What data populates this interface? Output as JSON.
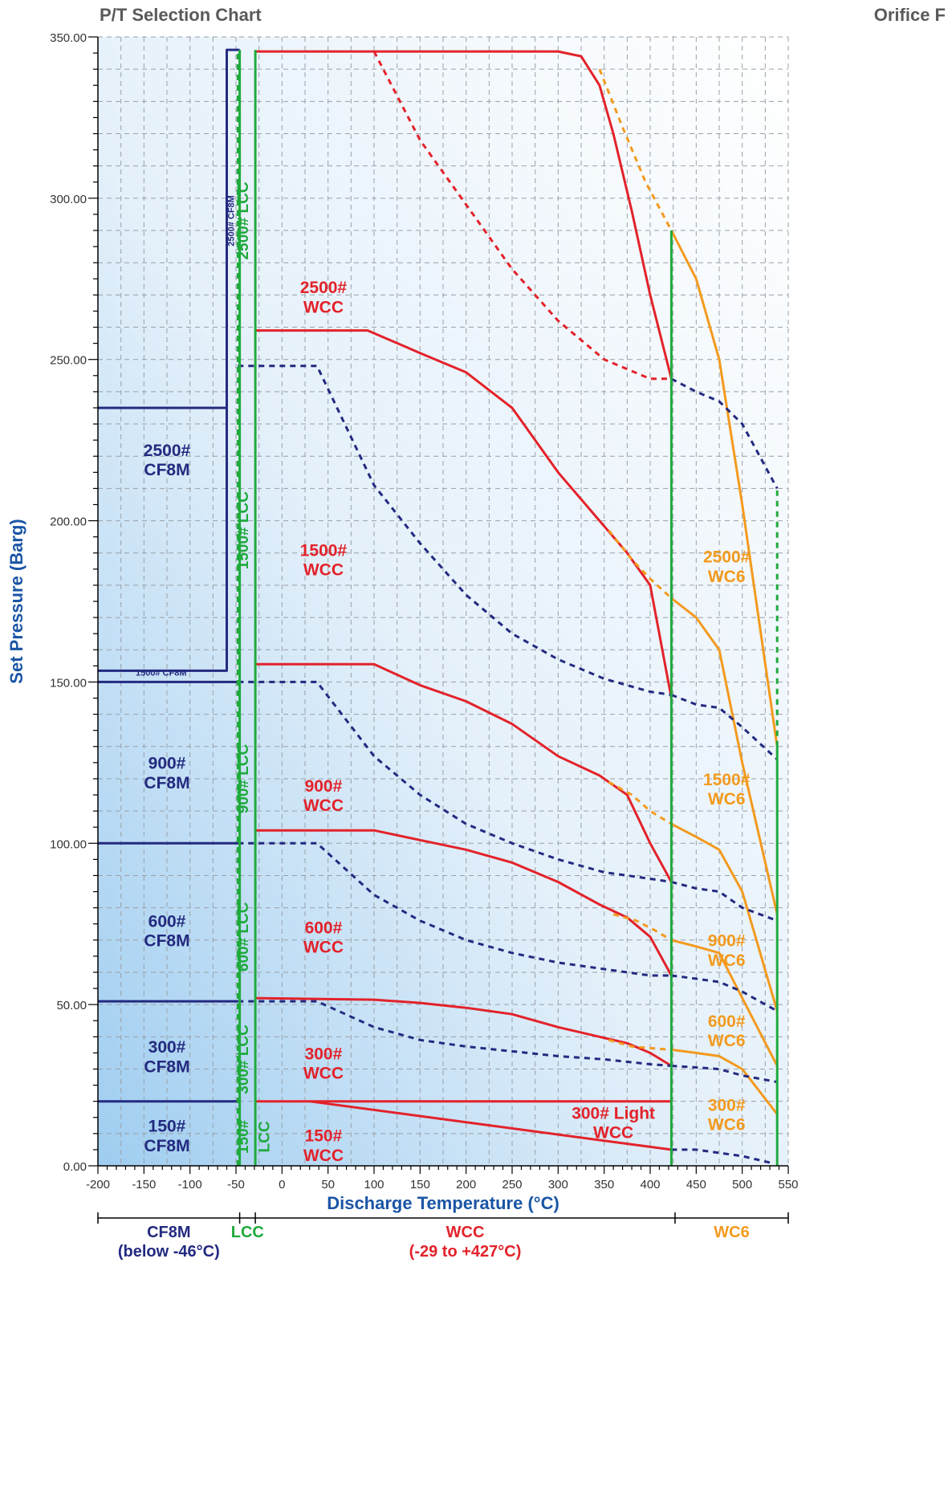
{
  "header": {
    "left": "P/T Selection Chart",
    "right": "Orifice F"
  },
  "chart_data": {
    "type": "line",
    "title": "P/T Selection Chart",
    "subtitle": "Orifice F",
    "xlabel": "Discharge Temperature (°C)",
    "ylabel": "Set Pressure (Barg)",
    "xlim": [
      -200,
      550
    ],
    "ylim": [
      0,
      350
    ],
    "grid": true,
    "x_ticks": [
      -200,
      -150,
      -100,
      -50,
      0,
      50,
      100,
      150,
      200,
      250,
      300,
      350,
      400,
      450,
      500,
      550
    ],
    "y_ticks": [
      0,
      50,
      100,
      150,
      200,
      250,
      300,
      350
    ],
    "y_tick_labels": [
      "0.00",
      "50.00",
      "100.00",
      "150.00",
      "200.00",
      "250.00",
      "300.00",
      "350.00"
    ],
    "colors": {
      "cf8m": "#232a80",
      "lcc": "#1faa3c",
      "wcc": "#e3222a",
      "wc6": "#f39a1e",
      "axis_label": "#1a55a5"
    },
    "series": [
      {
        "name": "2500# WCC",
        "material": "wcc",
        "style": "solid",
        "x": [
          -29,
          100,
          300,
          325,
          345,
          360,
          380,
          400,
          423
        ],
        "y": [
          345.5,
          345.5,
          345.5,
          344,
          335,
          320,
          296,
          270,
          244
        ]
      },
      {
        "name": "",
        "material": "wcc",
        "style": "dashed",
        "x": [
          100,
          150,
          200,
          250,
          300,
          350,
          400,
          423
        ],
        "y": [
          345.5,
          318,
          298,
          278,
          262,
          250,
          244,
          244
        ]
      },
      {
        "name": "",
        "material": "wc6",
        "style": "dashed",
        "x": [
          345,
          370,
          395,
          423
        ],
        "y": [
          340,
          322,
          305,
          290
        ]
      },
      {
        "name": "2500# WC6",
        "material": "wc6",
        "style": "solid",
        "x": [
          423,
          450,
          475,
          500,
          538
        ],
        "y": [
          290,
          275,
          250,
          205,
          130
        ]
      },
      {
        "name": "",
        "material": "cf8m",
        "style": "dashed",
        "x": [
          423,
          450,
          475,
          500,
          538
        ],
        "y": [
          244,
          240,
          237,
          230,
          210
        ]
      },
      {
        "name": "1500# WCC",
        "material": "wcc",
        "style": "solid",
        "x": [
          -29,
          93,
          150,
          200,
          250,
          300,
          345,
          375,
          400,
          423
        ],
        "y": [
          259,
          259,
          252,
          246,
          235,
          215,
          200,
          190,
          180,
          145
        ]
      },
      {
        "name": "",
        "material": "cf8m",
        "style": "dashed",
        "x": [
          -48,
          38,
          100,
          150,
          200,
          250,
          300,
          350,
          400,
          423
        ],
        "y": [
          248,
          248,
          211,
          193,
          177,
          165,
          157,
          151,
          147,
          146
        ]
      },
      {
        "name": "",
        "material": "wc6",
        "style": "dashed",
        "x": [
          355,
          380,
          400,
          423
        ],
        "y": [
          197,
          188,
          182,
          176
        ]
      },
      {
        "name": "1500# WC6",
        "material": "wc6",
        "style": "solid",
        "x": [
          423,
          450,
          475,
          500,
          538
        ],
        "y": [
          176,
          170,
          160,
          125,
          78
        ]
      },
      {
        "name": "",
        "material": "cf8m",
        "style": "dashed",
        "x": [
          423,
          450,
          475,
          500,
          538
        ],
        "y": [
          146,
          143,
          142,
          136,
          126
        ]
      },
      {
        "name": "900# WCC",
        "material": "wcc",
        "style": "solid",
        "x": [
          -29,
          100,
          150,
          200,
          250,
          300,
          345,
          375,
          400,
          423
        ],
        "y": [
          155.5,
          155.5,
          149,
          144,
          137,
          127,
          121,
          115,
          100,
          88
        ]
      },
      {
        "name": "",
        "material": "cf8m",
        "style": "dashed",
        "x": [
          -48,
          38,
          100,
          150,
          200,
          250,
          300,
          350,
          400,
          423
        ],
        "y": [
          150,
          150,
          127,
          115,
          106,
          100,
          95,
          91,
          89,
          88
        ]
      },
      {
        "name": "",
        "material": "wc6",
        "style": "dashed",
        "x": [
          355,
          380,
          400,
          423
        ],
        "y": [
          119,
          115,
          110,
          106
        ]
      },
      {
        "name": "900# WC6",
        "material": "wc6",
        "style": "solid",
        "x": [
          423,
          450,
          475,
          500,
          538
        ],
        "y": [
          106,
          102,
          98,
          85,
          48
        ]
      },
      {
        "name": "",
        "material": "cf8m",
        "style": "dashed",
        "x": [
          423,
          450,
          475,
          500,
          538
        ],
        "y": [
          88,
          86,
          85,
          80,
          76
        ]
      },
      {
        "name": "600# WCC",
        "material": "wcc",
        "style": "solid",
        "x": [
          -29,
          100,
          150,
          200,
          250,
          300,
          345,
          375,
          400,
          423
        ],
        "y": [
          104,
          104,
          101,
          98,
          94,
          88,
          81,
          77,
          71,
          59
        ]
      },
      {
        "name": "",
        "material": "cf8m",
        "style": "dashed",
        "x": [
          -48,
          38,
          100,
          150,
          200,
          250,
          300,
          350,
          400,
          423
        ],
        "y": [
          100,
          100,
          84,
          76,
          70,
          66,
          63,
          61,
          59,
          59
        ]
      },
      {
        "name": "",
        "material": "wc6",
        "style": "dashed",
        "x": [
          360,
          385,
          405,
          423
        ],
        "y": [
          78,
          76,
          73,
          70
        ]
      },
      {
        "name": "600# WC6",
        "material": "wc6",
        "style": "solid",
        "x": [
          423,
          450,
          475,
          500,
          538
        ],
        "y": [
          70,
          68,
          66,
          52,
          31
        ]
      },
      {
        "name": "",
        "material": "cf8m",
        "style": "dashed",
        "x": [
          423,
          450,
          475,
          500,
          538
        ],
        "y": [
          59,
          58,
          57,
          54,
          48
        ]
      },
      {
        "name": "300# WCC",
        "material": "wcc",
        "style": "solid",
        "x": [
          -29,
          100,
          150,
          200,
          250,
          300,
          345,
          375,
          400,
          423
        ],
        "y": [
          52,
          51.5,
          50.5,
          49,
          47,
          43,
          40,
          38,
          35,
          31
        ]
      },
      {
        "name": "",
        "material": "cf8m",
        "style": "dashed",
        "x": [
          -48,
          38,
          100,
          150,
          200,
          250,
          300,
          350,
          400,
          423
        ],
        "y": [
          51,
          51,
          43,
          39,
          37,
          35.5,
          34,
          33,
          31.5,
          31
        ]
      },
      {
        "name": "",
        "material": "wc6",
        "style": "dashed",
        "x": [
          355,
          380,
          400,
          423
        ],
        "y": [
          39,
          37,
          36.5,
          36
        ]
      },
      {
        "name": "300# WC6",
        "material": "wc6",
        "style": "solid",
        "x": [
          423,
          450,
          475,
          500,
          538
        ],
        "y": [
          36,
          35,
          34,
          30,
          16
        ]
      },
      {
        "name": "",
        "material": "cf8m",
        "style": "dashed",
        "x": [
          423,
          450,
          475,
          500,
          538
        ],
        "y": [
          31,
          30.5,
          30,
          28,
          26
        ]
      },
      {
        "name": "300# Light WCC",
        "material": "wcc",
        "style": "solid",
        "x": [
          -29,
          423
        ],
        "y": [
          20,
          20
        ]
      },
      {
        "name": "150# WCC",
        "material": "wcc",
        "style": "solid",
        "x": [
          30,
          423
        ],
        "y": [
          20,
          5
        ]
      },
      {
        "name": "",
        "material": "cf8m",
        "style": "dashed",
        "x": [
          423,
          450,
          475,
          500,
          530
        ],
        "y": [
          5,
          5,
          4,
          3,
          1
        ]
      },
      {
        "name": "2500# CF8M",
        "material": "cf8m",
        "style": "solid",
        "x": [
          -200,
          -60,
          -60,
          -46
        ],
        "y": [
          235,
          235,
          346,
          346
        ]
      },
      {
        "name": "1500# CF8M",
        "material": "cf8m",
        "style": "solid",
        "x": [
          -200,
          -60,
          -60
        ],
        "y": [
          153.5,
          153.5,
          235
        ]
      },
      {
        "name": "900# CF8M",
        "material": "cf8m",
        "style": "solid",
        "x": [
          -200,
          -48
        ],
        "y": [
          150,
          150
        ]
      },
      {
        "name": "600# CF8M",
        "material": "cf8m",
        "style": "solid",
        "x": [
          -200,
          -48
        ],
        "y": [
          100,
          100
        ]
      },
      {
        "name": "300# CF8M",
        "material": "cf8m",
        "style": "solid",
        "x": [
          -200,
          -48
        ],
        "y": [
          51,
          51
        ]
      },
      {
        "name": "150# CF8M",
        "material": "cf8m",
        "style": "solid",
        "x": [
          -200,
          -48
        ],
        "y": [
          20,
          20
        ]
      },
      {
        "name": "",
        "material": "lcc",
        "style": "solid",
        "x": [
          -46,
          -46
        ],
        "y": [
          0,
          346
        ]
      },
      {
        "name": "",
        "material": "lcc",
        "style": "solid",
        "x": [
          -29,
          -29
        ],
        "y": [
          0,
          346
        ]
      },
      {
        "name": "",
        "material": "lcc",
        "style": "dashed",
        "x": [
          -48,
          -48
        ],
        "y": [
          0,
          346
        ]
      },
      {
        "name": "",
        "material": "lcc",
        "style": "solid",
        "x": [
          423,
          423
        ],
        "y": [
          0,
          290
        ]
      },
      {
        "name": "",
        "material": "lcc",
        "style": "solid",
        "x": [
          538,
          538
        ],
        "y": [
          0,
          130
        ]
      },
      {
        "name": "",
        "material": "lcc",
        "style": "dashed",
        "x": [
          538,
          538
        ],
        "y": [
          130,
          210
        ]
      }
    ],
    "annotations": [
      {
        "lines": [
          "2500#",
          "WCC"
        ],
        "x": 45,
        "y": 269.5,
        "material": "wcc"
      },
      {
        "lines": [
          "1500#",
          "WCC"
        ],
        "x": 45,
        "y": 188,
        "material": "wcc"
      },
      {
        "lines": [
          "900#",
          "WCC"
        ],
        "x": 45,
        "y": 115,
        "material": "wcc"
      },
      {
        "lines": [
          "600#",
          "WCC"
        ],
        "x": 45,
        "y": 71,
        "material": "wcc"
      },
      {
        "lines": [
          "300#",
          "WCC"
        ],
        "x": 45,
        "y": 32,
        "material": "wcc"
      },
      {
        "lines": [
          "150#",
          "WCC"
        ],
        "x": 45,
        "y": 6.5,
        "material": "wcc"
      },
      {
        "lines": [
          "300# Light",
          "WCC"
        ],
        "x": 360,
        "y": 13.5,
        "material": "wcc"
      },
      {
        "lines": [
          "2500#",
          "CF8M"
        ],
        "x": -125,
        "y": 219,
        "material": "cf8m"
      },
      {
        "lines": [
          "900#",
          "CF8M"
        ],
        "x": -125,
        "y": 122,
        "material": "cf8m"
      },
      {
        "lines": [
          "600#",
          "CF8M"
        ],
        "x": -125,
        "y": 73,
        "material": "cf8m"
      },
      {
        "lines": [
          "300#",
          "CF8M"
        ],
        "x": -125,
        "y": 34,
        "material": "cf8m"
      },
      {
        "lines": [
          "150#",
          "CF8M"
        ],
        "x": -125,
        "y": 9.5,
        "material": "cf8m"
      },
      {
        "lines": [
          "2500#",
          "WC6"
        ],
        "x": 483,
        "y": 186,
        "material": "wc6"
      },
      {
        "lines": [
          "1500#",
          "WC6"
        ],
        "x": 483,
        "y": 117,
        "material": "wc6"
      },
      {
        "lines": [
          "900#",
          "WC6"
        ],
        "x": 483,
        "y": 67,
        "material": "wc6"
      },
      {
        "lines": [
          "600#",
          "WC6"
        ],
        "x": 483,
        "y": 42,
        "material": "wc6"
      },
      {
        "lines": [
          "300#",
          "WC6"
        ],
        "x": 483,
        "y": 16,
        "material": "wc6"
      }
    ],
    "vertical_labels": [
      {
        "text": "2500# LCC",
        "x": -37,
        "y": 293,
        "material": "lcc",
        "size": "large"
      },
      {
        "text": "1500# LCC",
        "x": -37,
        "y": 197,
        "material": "lcc",
        "size": "large"
      },
      {
        "text": "900# LCC",
        "x": -37,
        "y": 120,
        "material": "lcc",
        "size": "large"
      },
      {
        "text": "600# LCC",
        "x": -37,
        "y": 71,
        "material": "lcc",
        "size": "large"
      },
      {
        "text": "300# LCC",
        "x": -37,
        "y": 33,
        "material": "lcc",
        "size": "large"
      },
      {
        "text": "150#",
        "x": -37,
        "y": 9,
        "material": "lcc",
        "size": "large"
      },
      {
        "text": "LCC",
        "x": -14,
        "y": 9,
        "material": "lcc",
        "size": "large"
      },
      {
        "text": "2500# CF8M",
        "x": -52,
        "y": 293,
        "material": "cf8m",
        "size": "small"
      }
    ],
    "small_labels": [
      {
        "text": "1500# CF8M",
        "x": -159,
        "y": 152,
        "material": "cf8m"
      }
    ],
    "material_ranges": [
      {
        "name": "CF8M",
        "note": "(below -46°C)",
        "from": -200,
        "to": -46,
        "material": "cf8m"
      },
      {
        "name": "LCC",
        "note": "",
        "from": -46,
        "to": -29,
        "material": "lcc"
      },
      {
        "name": "WCC",
        "note": "(-29 to +427°C)",
        "from": -29,
        "to": 427,
        "material": "wcc"
      },
      {
        "name": "WC6",
        "note": "",
        "from": 427,
        "to": 550,
        "material": "wc6"
      }
    ]
  }
}
